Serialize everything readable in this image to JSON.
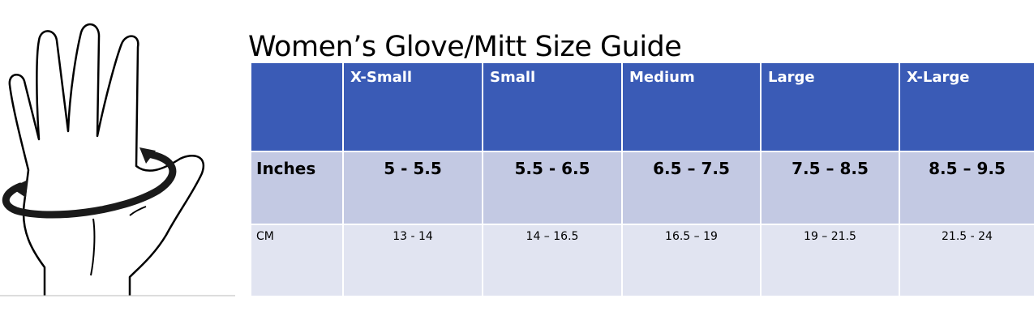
{
  "title": "Women’s Glove/Mitt Size Guide",
  "table": {
    "columns": [
      "X-Small",
      "Small",
      "Medium",
      "Large",
      "X-Large"
    ],
    "rows": [
      {
        "label": "Inches",
        "values": [
          "5 - 5.5",
          "5.5 - 6.5",
          "6.5 – 7.5",
          "7.5 – 8.5",
          "8.5 – 9.5"
        ]
      },
      {
        "label": "CM",
        "values": [
          "13 - 14",
          "14 – 16.5",
          "16.5 – 19",
          "19 – 21.5",
          "21.5 - 24"
        ]
      }
    ]
  }
}
